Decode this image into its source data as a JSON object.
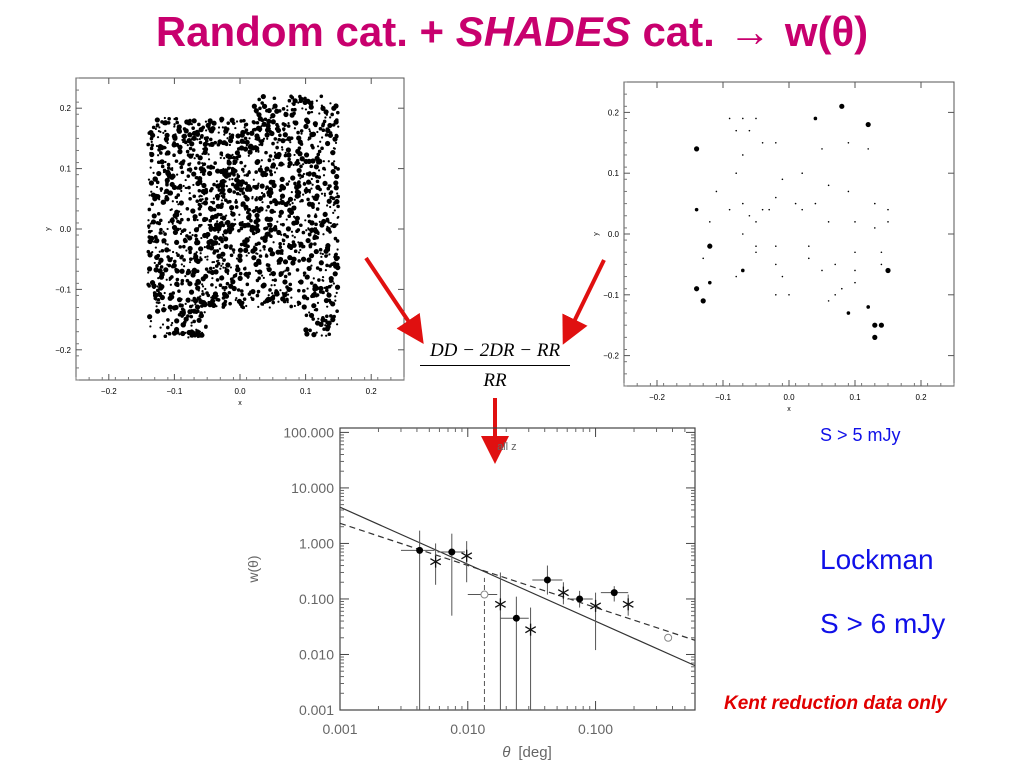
{
  "title": {
    "part1": "Random cat. + ",
    "shades": "SHADES",
    "part2": " cat.",
    "arrow": "→",
    "result": "w(θ)"
  },
  "formula": {
    "numerator": "DD − 2DR − RR",
    "denominator": "RR"
  },
  "labels": {
    "s5": "S > 5 mJy",
    "lockman": "Lockman",
    "s6": "S > 6 mJy",
    "kent": "Kent reduction data only"
  },
  "colors": {
    "title": "#c8006e",
    "arrow": "#e01010",
    "blue": "#1010e8",
    "note": "#e00000"
  },
  "chart_data": [
    {
      "type": "scatter",
      "xlabel": "x",
      "ylabel": "y",
      "xlim": [
        -0.25,
        0.25
      ],
      "ylim": [
        -0.25,
        0.25
      ],
      "xticks": [
        "−0.2",
        "−0.1",
        "0.0",
        "0.1",
        "0.2"
      ],
      "yticks": [
        "−0.2",
        "−0.1",
        "0.0",
        "0.1",
        "0.2"
      ],
      "series": [
        {
          "x_range": [
            -0.14,
            0.15
          ],
          "y_range": [
            -0.18,
            0.22
          ],
          "n_points": 1800
        }
      ]
    },
    {
      "type": "scatter",
      "xlabel": "x",
      "ylabel": "y",
      "xlim": [
        -0.25,
        0.25
      ],
      "ylim": [
        -0.25,
        0.25
      ],
      "xticks": [
        "−0.2",
        "−0.1",
        "0.0",
        "0.1",
        "0.2"
      ],
      "yticks": [
        "−0.2",
        "−0.1",
        "0.0",
        "0.1",
        "0.2"
      ],
      "series": [
        {
          "points": [
            [
              -0.14,
              0.14,
              3
            ],
            [
              -0.14,
              0.04,
              2
            ],
            [
              -0.12,
              0.02,
              1
            ],
            [
              -0.12,
              -0.02,
              3
            ],
            [
              -0.13,
              -0.04,
              1
            ],
            [
              -0.14,
              -0.09,
              3
            ],
            [
              -0.13,
              -0.11,
              3
            ],
            [
              -0.12,
              -0.08,
              2
            ],
            [
              -0.09,
              0.19,
              1
            ],
            [
              -0.08,
              0.17,
              1
            ],
            [
              -0.07,
              0.19,
              1
            ],
            [
              -0.07,
              0.13,
              1
            ],
            [
              -0.06,
              0.17,
              1
            ],
            [
              -0.05,
              0.19,
              1
            ],
            [
              -0.04,
              0.15,
              1
            ],
            [
              -0.02,
              0.15,
              1
            ],
            [
              -0.11,
              0.07,
              1
            ],
            [
              -0.08,
              0.1,
              1
            ],
            [
              -0.09,
              0.04,
              1
            ],
            [
              -0.07,
              0.05,
              1
            ],
            [
              -0.06,
              0.03,
              1
            ],
            [
              -0.07,
              0.0,
              1
            ],
            [
              -0.07,
              -0.06,
              2
            ],
            [
              -0.08,
              -0.07,
              1
            ],
            [
              -0.05,
              0.02,
              1
            ],
            [
              -0.05,
              -0.02,
              1
            ],
            [
              -0.04,
              0.04,
              1
            ],
            [
              -0.02,
              0.06,
              1
            ],
            [
              -0.03,
              0.04,
              1
            ],
            [
              -0.02,
              -0.02,
              1
            ],
            [
              -0.02,
              -0.05,
              1
            ],
            [
              -0.01,
              -0.07,
              1
            ],
            [
              0.01,
              0.05,
              1
            ],
            [
              0.02,
              0.04,
              1
            ],
            [
              0.03,
              -0.02,
              1
            ],
            [
              0.04,
              0.19,
              2
            ],
            [
              0.04,
              0.05,
              1
            ],
            [
              0.05,
              0.14,
              1
            ],
            [
              0.06,
              0.08,
              1
            ],
            [
              0.06,
              0.02,
              1
            ],
            [
              0.07,
              -0.05,
              1
            ],
            [
              0.05,
              -0.06,
              1
            ],
            [
              0.08,
              0.21,
              3
            ],
            [
              0.08,
              -0.09,
              1
            ],
            [
              0.09,
              0.15,
              1
            ],
            [
              0.09,
              0.07,
              1
            ],
            [
              0.1,
              0.02,
              1
            ],
            [
              0.1,
              -0.03,
              1
            ],
            [
              0.1,
              -0.06,
              1
            ],
            [
              0.1,
              -0.08,
              1
            ],
            [
              0.12,
              0.18,
              3
            ],
            [
              0.12,
              0.14,
              1
            ],
            [
              0.13,
              0.05,
              1
            ],
            [
              0.13,
              0.01,
              1
            ],
            [
              0.14,
              -0.03,
              1
            ],
            [
              0.14,
              -0.05,
              1
            ],
            [
              0.15,
              -0.06,
              3
            ],
            [
              0.15,
              0.02,
              1
            ],
            [
              0.15,
              0.04,
              1
            ],
            [
              0.12,
              -0.12,
              2
            ],
            [
              0.13,
              -0.15,
              3
            ],
            [
              0.13,
              -0.17,
              3
            ],
            [
              0.14,
              -0.15,
              3
            ],
            [
              0.09,
              -0.13,
              2
            ],
            [
              0.03,
              -0.04,
              1
            ],
            [
              0.02,
              0.1,
              1
            ],
            [
              -0.01,
              0.09,
              1
            ],
            [
              0.0,
              -0.1,
              1
            ],
            [
              -0.02,
              -0.1,
              1
            ],
            [
              0.06,
              -0.11,
              1
            ],
            [
              0.07,
              -0.1,
              1
            ],
            [
              -0.05,
              -0.03,
              1
            ]
          ]
        }
      ]
    },
    {
      "type": "scatter",
      "title": "all  z",
      "xlabel": "θ",
      "xunit": "deg",
      "ylabel": "w(θ)",
      "xscale": "log",
      "yscale": "log",
      "xlim": [
        0.001,
        0.6
      ],
      "ylim": [
        0.001,
        120
      ],
      "xticks": [
        "0.001",
        "0.010",
        "0.100"
      ],
      "yticks": [
        "0.001",
        "0.010",
        "0.100",
        "1.000",
        "10.000",
        "100.000"
      ],
      "series": [
        {
          "name": "",
          "marker": "dot",
          "points": [
            {
              "x": 0.0042,
              "y": 0.75,
              "ylo": 0.001,
              "yhi": 1.7,
              "xlo": 0.003,
              "xhi": 0.0055
            },
            {
              "x": 0.0075,
              "y": 0.7,
              "ylo": 0.05,
              "yhi": 1.5,
              "xlo": 0.0058,
              "xhi": 0.0095
            },
            {
              "x": 0.024,
              "y": 0.045,
              "ylo": 0.001,
              "yhi": 0.11,
              "xlo": 0.018,
              "xhi": 0.03
            },
            {
              "x": 0.042,
              "y": 0.22,
              "ylo": 0.12,
              "yhi": 0.4,
              "xlo": 0.032,
              "xhi": 0.055
            },
            {
              "x": 0.075,
              "y": 0.1,
              "ylo": 0.07,
              "yhi": 0.14,
              "xlo": 0.06,
              "xhi": 0.095
            },
            {
              "x": 0.14,
              "y": 0.13,
              "ylo": 0.09,
              "yhi": 0.17,
              "xlo": 0.11,
              "xhi": 0.18
            }
          ]
        },
        {
          "name": "",
          "marker": "star",
          "points": [
            {
              "x": 0.0056,
              "y": 0.47,
              "ylo": 0.18,
              "yhi": 1.0
            },
            {
              "x": 0.0098,
              "y": 0.6,
              "ylo": 0.2,
              "yhi": 1.1
            },
            {
              "x": 0.018,
              "y": 0.08,
              "ylo": 0.001,
              "yhi": 0.3
            },
            {
              "x": 0.031,
              "y": 0.028,
              "ylo": 0.001,
              "yhi": 0.07
            },
            {
              "x": 0.056,
              "y": 0.13,
              "ylo": 0.08,
              "yhi": 0.2
            },
            {
              "x": 0.1,
              "y": 0.075,
              "ylo": 0.012,
              "yhi": 0.13
            },
            {
              "x": 0.18,
              "y": 0.08,
              "ylo": 0.05,
              "yhi": 0.12
            }
          ]
        },
        {
          "name": "",
          "marker": "open-diamond",
          "points": [
            {
              "x": 0.0135,
              "y": 0.12,
              "ylo": 0.001,
              "yhi": 0.24,
              "xlo": 0.01,
              "xhi": 0.017
            },
            {
              "x": 0.37,
              "y": 0.02,
              "ylo": 0.02,
              "yhi": 0.02
            }
          ]
        }
      ],
      "fits": [
        {
          "style": "solid",
          "from": [
            0.001,
            4.5
          ],
          "to": [
            0.6,
            0.0063
          ]
        },
        {
          "style": "dashed",
          "from": [
            0.001,
            2.3
          ],
          "to": [
            0.6,
            0.018
          ]
        }
      ]
    }
  ]
}
